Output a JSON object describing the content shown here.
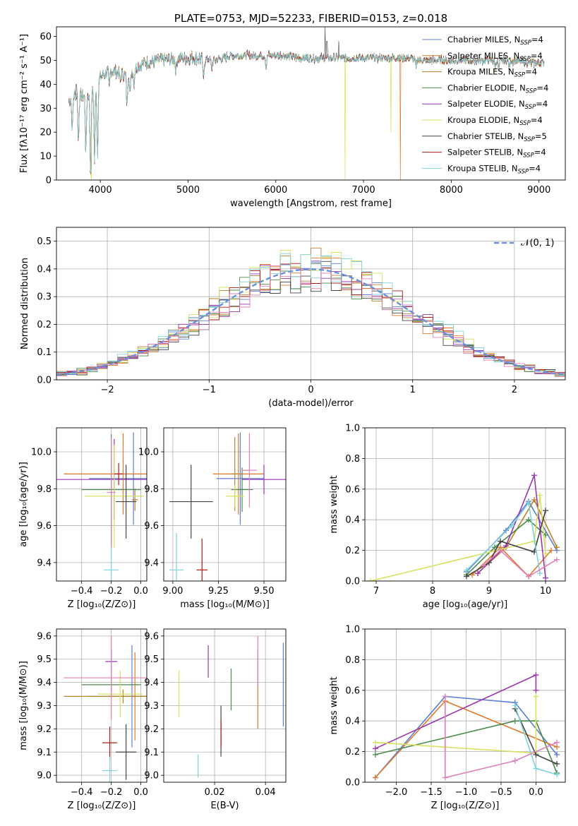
{
  "colors": {
    "chabrier_miles": "#5b7fd6",
    "salpeter_miles": "#e07a2a",
    "kroupa_miles": "#b8832b",
    "chabrier_elodie": "#4a8a4a",
    "salpeter_elodie": "#9a35b0",
    "kroupa_elodie": "#d8e060",
    "chabrier_stelib": "#444444",
    "salpeter_stelib": "#b01818",
    "kroupa_stelib": "#7fd3db",
    "pink": "#e080b8",
    "grid": "#b0b0b0"
  },
  "chart_data": [
    {
      "id": "spectrum",
      "type": "line",
      "title": "PLATE=0753, MJD=52233, FIBERID=0153, z=0.018",
      "xlabel": "wavelength [Angstrom, rest frame]",
      "ylabel": "Flux [fλ10⁻¹⁷ erg cm⁻² s⁻¹ A⁻¹]",
      "xlim": [
        3500,
        9300
      ],
      "ylim": [
        0,
        64
      ],
      "xticks": [
        4000,
        5000,
        6000,
        7000,
        8000,
        9000
      ],
      "yticks": [
        0,
        10,
        20,
        30,
        40,
        50,
        60
      ],
      "grid": false,
      "legend_position": "top-right",
      "legend": [
        {
          "label": "Chabrier MILES, N",
          "sub": "SSP",
          "suffix": "=4",
          "color": "#5b7fd6"
        },
        {
          "label": "Salpeter MILES, N",
          "sub": "SSP",
          "suffix": "=4",
          "color": "#e07a2a"
        },
        {
          "label": "Kroupa MILES, N",
          "sub": "SSP",
          "suffix": "=4",
          "color": "#b8832b"
        },
        {
          "label": "Chabrier ELODIE, N",
          "sub": "SSP",
          "suffix": "=4",
          "color": "#4a8a4a"
        },
        {
          "label": "Salpeter ELODIE, N",
          "sub": "SSP",
          "suffix": "=4",
          "color": "#9a35b0"
        },
        {
          "label": "Kroupa ELODIE, N",
          "sub": "SSP",
          "suffix": "=4",
          "color": "#d8e060"
        },
        {
          "label": "Chabrier STELIB, N",
          "sub": "SSP",
          "suffix": "=5",
          "color": "#444444"
        },
        {
          "label": "Salpeter STELIB, N",
          "sub": "SSP",
          "suffix": "=4",
          "color": "#b01818"
        },
        {
          "label": "Kroupa STELIB, N",
          "sub": "SSP",
          "suffix": "=4",
          "color": "#7fd3db"
        }
      ],
      "continuum": [
        [
          3640,
          33
        ],
        [
          3700,
          36
        ],
        [
          3800,
          35
        ],
        [
          3900,
          36
        ],
        [
          3950,
          40
        ],
        [
          4000,
          43
        ],
        [
          4100,
          46
        ],
        [
          4200,
          45
        ],
        [
          4300,
          44
        ],
        [
          4400,
          47
        ],
        [
          4500,
          49
        ],
        [
          4700,
          50
        ],
        [
          4900,
          51
        ],
        [
          5100,
          51
        ],
        [
          5300,
          50
        ],
        [
          5500,
          52
        ],
        [
          5700,
          52
        ],
        [
          5900,
          52
        ],
        [
          6100,
          52
        ],
        [
          6300,
          51
        ],
        [
          6500,
          51
        ],
        [
          6700,
          51
        ],
        [
          6900,
          51
        ],
        [
          7100,
          51
        ],
        [
          7300,
          51
        ],
        [
          7500,
          51
        ],
        [
          7700,
          50
        ],
        [
          7900,
          50
        ],
        [
          8100,
          50
        ],
        [
          8300,
          50
        ],
        [
          8500,
          50
        ],
        [
          8700,
          50
        ],
        [
          8900,
          49
        ],
        [
          9050,
          49
        ]
      ],
      "absorption_features": [
        [
          3680,
          14
        ],
        [
          3750,
          20
        ],
        [
          3835,
          24
        ],
        [
          3889,
          35
        ],
        [
          3934,
          31
        ],
        [
          3968,
          31
        ],
        [
          4102,
          8
        ],
        [
          4227,
          4
        ],
        [
          4304,
          13
        ],
        [
          4340,
          9
        ],
        [
          4384,
          6
        ],
        [
          4861,
          5
        ],
        [
          5175,
          9
        ],
        [
          5270,
          4
        ],
        [
          5890,
          5
        ],
        [
          7600,
          4
        ],
        [
          8500,
          3
        ],
        [
          8542,
          4
        ],
        [
          8662,
          3
        ]
      ],
      "spikes": [
        [
          6563,
          64
        ],
        [
          6583,
          58
        ],
        [
          6717,
          58
        ],
        [
          3727,
          40
        ]
      ],
      "dropouts": [
        {
          "series": 5,
          "x": 3900,
          "to": 0
        },
        {
          "series": 5,
          "x": 6790,
          "to": 0
        },
        {
          "series": 1,
          "x": 7420,
          "to": 0
        },
        {
          "series": 5,
          "x": 7310,
          "to": 20
        }
      ]
    },
    {
      "id": "residuals",
      "type": "line",
      "xlabel": "(data-model)/error",
      "ylabel": "Normed distribution",
      "xlim": [
        -2.5,
        2.5
      ],
      "ylim": [
        0,
        0.55
      ],
      "xticks": [
        -2,
        -1,
        0,
        1,
        2
      ],
      "yticks": [
        0.0,
        0.1,
        0.2,
        0.3,
        0.4,
        0.5
      ],
      "grid": true,
      "legend_position": "top-right",
      "legend": [
        {
          "label": "𝒩(0, 1)",
          "color": "#6a8fdc",
          "style": "dashed"
        }
      ],
      "gaussian": {
        "mu": 0,
        "sigma": 1
      }
    },
    {
      "id": "age-vs-z",
      "type": "scatter",
      "xlabel": "Z [log₁₀(Z/Z⊙)]",
      "ylabel": "age  [log₁₀(age/yr)]",
      "xlim": [
        -0.57,
        0.04
      ],
      "ylim": [
        9.3,
        10.13
      ],
      "xticks": [
        -0.4,
        -0.2,
        0.0
      ],
      "yticks": [
        9.4,
        9.6,
        9.8,
        10.0
      ],
      "grid": true,
      "points": [
        {
          "color": "#5b7fd6",
          "x": -0.05,
          "xerr": 0.3,
          "y": 9.855,
          "yerr": 0.25
        },
        {
          "color": "#e07a2a",
          "x": -0.12,
          "xerr": 0.4,
          "y": 9.88,
          "yerr": 0.22
        },
        {
          "color": "#b8832b",
          "x": -0.04,
          "xerr": 0.02,
          "y": 9.74,
          "yerr": 0.06
        },
        {
          "color": "#4a8a4a",
          "x": -0.2,
          "xerr": 0.2,
          "y": 9.795,
          "yerr": 0.3
        },
        {
          "color": "#9a35b0",
          "x": -0.18,
          "xerr": 0.5,
          "y": 9.85,
          "yerr": 0.22
        },
        {
          "color": "#d8e060",
          "x": -0.18,
          "xerr": 0.2,
          "y": 9.76,
          "yerr": 0.28
        },
        {
          "color": "#444444",
          "x": -0.1,
          "xerr": 0.07,
          "y": 9.73,
          "yerr": 0.2
        },
        {
          "color": "#b01818",
          "x": -0.15,
          "xerr": 0.03,
          "y": 9.88,
          "yerr": 0.06
        },
        {
          "color": "#7fd3db",
          "x": -0.2,
          "xerr": 0.05,
          "y": 9.36,
          "yerr": 0.13
        },
        {
          "color": "#e080b8",
          "x": -0.2,
          "xerr": 0.03,
          "y": 9.78,
          "yerr": 0.3
        }
      ]
    },
    {
      "id": "age-vs-mass",
      "type": "scatter",
      "xlabel": "mass [log₁₀(M/M⊙)]",
      "ylabel": "",
      "xlim": [
        8.95,
        9.62
      ],
      "ylim": [
        9.3,
        10.13
      ],
      "xticks": [
        9.0,
        9.25,
        9.5
      ],
      "yticks": [
        9.4,
        9.6,
        9.8,
        10.0
      ],
      "grid": true,
      "points": [
        {
          "color": "#5b7fd6",
          "x": 9.37,
          "xerr": 0.13,
          "y": 9.855,
          "yerr": 0.25
        },
        {
          "color": "#e07a2a",
          "x": 9.36,
          "xerr": 0.14,
          "y": 9.88,
          "yerr": 0.22
        },
        {
          "color": "#b8832b",
          "x": 9.34,
          "xerr": 0.02,
          "y": 9.88,
          "yerr": 0.2
        },
        {
          "color": "#4a8a4a",
          "x": 9.38,
          "xerr": 0.06,
          "y": 9.795,
          "yerr": 0.12
        },
        {
          "color": "#9a35b0",
          "x": 9.5,
          "xerr": 0.12,
          "y": 9.85,
          "yerr": 0.08
        },
        {
          "color": "#d8e060",
          "x": 9.34,
          "xerr": 0.05,
          "y": 9.76,
          "yerr": 0.06
        },
        {
          "color": "#444444",
          "x": 9.1,
          "xerr": 0.12,
          "y": 9.73,
          "yerr": 0.2
        },
        {
          "color": "#b01818",
          "x": 9.16,
          "xerr": 0.03,
          "y": 9.36,
          "yerr": 0.17
        },
        {
          "color": "#7fd3db",
          "x": 9.02,
          "xerr": 0.04,
          "y": 9.36,
          "yerr": 0.2
        },
        {
          "color": "#e080b8",
          "x": 9.42,
          "xerr": 0.04,
          "y": 9.9,
          "yerr": 0.2
        }
      ]
    },
    {
      "id": "mass-weight-vs-age",
      "type": "line",
      "xlabel": "age  [log₁₀(age/yr)]",
      "ylabel": "mass weight",
      "xlim": [
        6.8,
        10.35
      ],
      "ylim": [
        0,
        1
      ],
      "xticks": [
        7,
        8,
        9,
        10
      ],
      "yticks": [
        0.0,
        0.2,
        0.4,
        0.6,
        0.8,
        1.0
      ],
      "grid": true,
      "series": [
        {
          "color": "#5b7fd6",
          "x": [
            8.6,
            9.3,
            9.7,
            10.2
          ],
          "y": [
            0.06,
            0.33,
            0.52,
            0.2
          ]
        },
        {
          "color": "#e07a2a",
          "x": [
            8.7,
            9.2,
            9.7,
            10.1
          ],
          "y": [
            0.04,
            0.22,
            0.03,
            0.2
          ]
        },
        {
          "color": "#b8832b",
          "x": [
            8.8,
            9.3,
            9.8,
            10.2
          ],
          "y": [
            0.05,
            0.22,
            0.53,
            0.22
          ]
        },
        {
          "color": "#4a8a4a",
          "x": [
            8.6,
            9.1,
            9.7,
            10.0
          ],
          "y": [
            0.04,
            0.22,
            0.4,
            0.3
          ]
        },
        {
          "color": "#9a35b0",
          "x": [
            8.8,
            9.3,
            9.8,
            10.0
          ],
          "y": [
            0.05,
            0.23,
            0.69,
            0.02
          ]
        },
        {
          "color": "#d8e060",
          "x": [
            6.9,
            9.8,
            9.9,
            10.0
          ],
          "y": [
            0.0,
            0.26,
            0.56,
            0.18
          ]
        },
        {
          "color": "#444444",
          "x": [
            8.6,
            9.0,
            9.2,
            9.8,
            10.0
          ],
          "y": [
            0.03,
            0.12,
            0.26,
            0.19,
            0.46
          ]
        },
        {
          "color": "#7fd3db",
          "x": [
            8.6,
            9.4,
            9.7,
            9.9
          ],
          "y": [
            0.07,
            0.36,
            0.51,
            0.05
          ]
        },
        {
          "color": "#e080b8",
          "x": [
            8.9,
            9.2,
            9.7,
            10.2
          ],
          "y": [
            0.1,
            0.2,
            0.03,
            0.14
          ]
        }
      ]
    },
    {
      "id": "mass-vs-z",
      "type": "scatter",
      "xlabel": "Z [log₁₀(Z/Z⊙)]",
      "ylabel": "mass [log₁₀(M/M⊙)]",
      "xlim": [
        -0.57,
        0.04
      ],
      "ylim": [
        8.97,
        9.63
      ],
      "xticks": [
        -0.4,
        -0.2,
        0.0
      ],
      "yticks": [
        9.0,
        9.1,
        9.2,
        9.3,
        9.4,
        9.5,
        9.6
      ],
      "grid": true,
      "points": [
        {
          "color": "#5b7fd6",
          "x": -0.06,
          "xerr": 0.3,
          "y": 9.34,
          "yerr": 0.22
        },
        {
          "color": "#e07a2a",
          "x": -0.04,
          "xerr": 0.2,
          "y": 9.34,
          "yerr": 0.19
        },
        {
          "color": "#b8832b",
          "x": -0.12,
          "xerr": 0.4,
          "y": 9.34,
          "yerr": 0.03
        },
        {
          "color": "#4a8a4a",
          "x": -0.2,
          "xerr": 0.2,
          "y": 9.39,
          "yerr": 0.05
        },
        {
          "color": "#9a35b0",
          "x": -0.2,
          "xerr": 0.04,
          "y": 9.49,
          "yerr": 0.05
        },
        {
          "color": "#d8e060",
          "x": -0.14,
          "xerr": 0.15,
          "y": 9.35,
          "yerr": 0.1
        },
        {
          "color": "#444444",
          "x": -0.1,
          "xerr": 0.07,
          "y": 9.1,
          "yerr": 0.12
        },
        {
          "color": "#b01818",
          "x": -0.21,
          "xerr": 0.05,
          "y": 9.14,
          "yerr": 0.07
        },
        {
          "color": "#7fd3db",
          "x": -0.21,
          "xerr": 0.05,
          "y": 9.02,
          "yerr": 0.06
        },
        {
          "color": "#e080b8",
          "x": -0.2,
          "xerr": 0.32,
          "y": 9.42,
          "yerr": 0.18
        }
      ]
    },
    {
      "id": "mass-vs-ebv",
      "type": "scatter",
      "xlabel": "E(B-V)",
      "ylabel": "",
      "xlim": [
        0.0,
        0.048
      ],
      "ylim": [
        8.97,
        9.63
      ],
      "xticks": [
        0.02,
        0.04
      ],
      "yticks": [
        9.0,
        9.1,
        9.2,
        9.3,
        9.4,
        9.5,
        9.6
      ],
      "grid": true,
      "points": [
        {
          "color": "#5b7fd6",
          "x": 0.047,
          "xerr": 0,
          "y": 9.39,
          "yerr": 0.18
        },
        {
          "color": "#e07a2a",
          "x": 0.037,
          "xerr": 0,
          "y": 9.37,
          "yerr": 0.17
        },
        {
          "color": "#4a8a4a",
          "x": 0.0265,
          "xerr": 0,
          "y": 9.37,
          "yerr": 0.09
        },
        {
          "color": "#9a35b0",
          "x": 0.0175,
          "xerr": 0,
          "y": 9.49,
          "yerr": 0.07
        },
        {
          "color": "#d8e060",
          "x": 0.006,
          "xerr": 0,
          "y": 9.35,
          "yerr": 0.1
        },
        {
          "color": "#444444",
          "x": 0.0225,
          "xerr": 0,
          "y": 9.19,
          "yerr": 0.11
        },
        {
          "color": "#b01818",
          "x": 0.0225,
          "xerr": 0,
          "y": 9.18,
          "yerr": 0.06
        },
        {
          "color": "#7fd3db",
          "x": 0.0135,
          "xerr": 0,
          "y": 9.04,
          "yerr": 0.05
        },
        {
          "color": "#e080b8",
          "x": 0.037,
          "xerr": 0,
          "y": 9.49,
          "yerr": 0.11
        }
      ]
    },
    {
      "id": "mass-weight-vs-z",
      "type": "line",
      "xlabel": "Z [log₁₀(Z/Z⊙)]",
      "ylabel": "mass weight",
      "xlim": [
        -2.45,
        0.42
      ],
      "ylim": [
        0,
        1
      ],
      "xticks": [
        -2.0,
        -1.5,
        -1.0,
        -0.5,
        0.0
      ],
      "yticks": [
        0.0,
        0.2,
        0.4,
        0.6,
        0.8,
        1.0
      ],
      "grid": true,
      "series": [
        {
          "color": "#5b7fd6",
          "x": [
            -2.3,
            -1.3,
            -0.3,
            0.3
          ],
          "y": [
            0.03,
            0.56,
            0.52,
            0.18
          ]
        },
        {
          "color": "#e07a2a",
          "x": [
            -2.3,
            -1.3,
            0.3
          ],
          "y": [
            0.03,
            0.53,
            0.23
          ]
        },
        {
          "color": "#4a8a4a",
          "x": [
            -2.3,
            -0.3,
            0.0,
            0.3
          ],
          "y": [
            0.18,
            0.4,
            0.4,
            0.06
          ]
        },
        {
          "color": "#9a35b0",
          "x": [
            -2.3,
            0.0,
            0.0
          ],
          "y": [
            0.22,
            0.7,
            0.6
          ]
        },
        {
          "color": "#d8e060",
          "x": [
            -2.3,
            0.0,
            0.0
          ],
          "y": [
            0.26,
            0.19,
            0.56
          ]
        },
        {
          "color": "#444444",
          "x": [
            -0.3,
            0.0,
            0.3
          ],
          "y": [
            0.48,
            0.18,
            0.12
          ]
        },
        {
          "color": "#7fd3db",
          "x": [
            -0.3,
            0.0,
            0.3
          ],
          "y": [
            0.5,
            0.09,
            0.05
          ]
        },
        {
          "color": "#e080b8",
          "x": [
            -1.3,
            -1.3,
            -0.3,
            0.3
          ],
          "y": [
            0.56,
            0.03,
            0.14,
            0.26
          ]
        }
      ]
    }
  ]
}
